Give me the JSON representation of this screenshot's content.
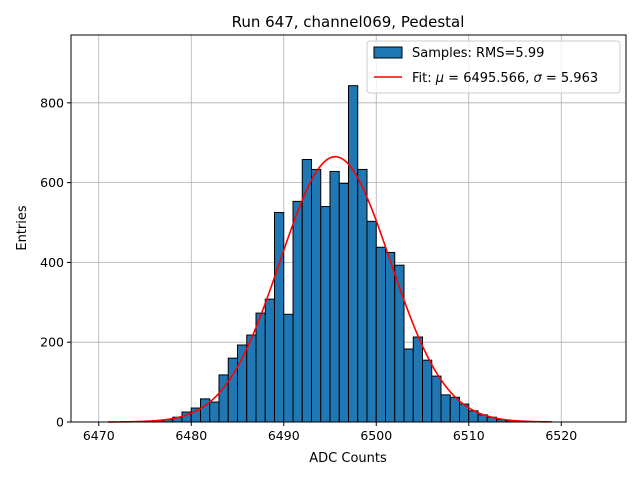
{
  "chart_data": {
    "type": "bar",
    "title": "Run 647, channel069, Pedestal",
    "xlabel": "ADC Counts",
    "ylabel": "Entries",
    "xlim": [
      6467,
      6527
    ],
    "ylim": [
      0,
      970
    ],
    "xticks": [
      6470,
      6480,
      6490,
      6500,
      6510,
      6520
    ],
    "yticks": [
      0,
      200,
      400,
      600,
      800
    ],
    "grid": true,
    "legend_position": "top-right",
    "bin_width": 1,
    "colors": {
      "bars": "#1f77b4",
      "edge": "#000000",
      "fit": "#ff0000",
      "grid": "#b0b0b0"
    },
    "series": [
      {
        "name": "Samples: RMS=5.99",
        "kind": "histogram",
        "bin_starts": [
          6476,
          6477,
          6478,
          6479,
          6480,
          6481,
          6482,
          6483,
          6484,
          6485,
          6486,
          6487,
          6488,
          6489,
          6490,
          6491,
          6492,
          6493,
          6494,
          6495,
          6496,
          6497,
          6498,
          6499,
          6500,
          6501,
          6502,
          6503,
          6504,
          6505,
          6506,
          6507,
          6508,
          6509,
          6510,
          6511,
          6512,
          6513,
          6514,
          6515
        ],
        "values": [
          3,
          6,
          12,
          25,
          35,
          58,
          50,
          118,
          160,
          193,
          218,
          273,
          308,
          525,
          270,
          553,
          658,
          633,
          540,
          628,
          598,
          843,
          633,
          503,
          438,
          425,
          393,
          183,
          213,
          155,
          115,
          68,
          62,
          45,
          28,
          18,
          12,
          6,
          3,
          2
        ]
      },
      {
        "name": "Fit: μ = 6495.566, σ = 5.963",
        "name_parts": {
          "prefix": "Fit: ",
          "mu": "μ",
          "mid": " = 6495.566, ",
          "sigma": "σ",
          "suffix": " = 5.963"
        },
        "kind": "gaussian",
        "mu": 6495.566,
        "sigma": 5.963,
        "amplitude": 665,
        "x_range": [
          6471,
          6519
        ]
      }
    ]
  }
}
